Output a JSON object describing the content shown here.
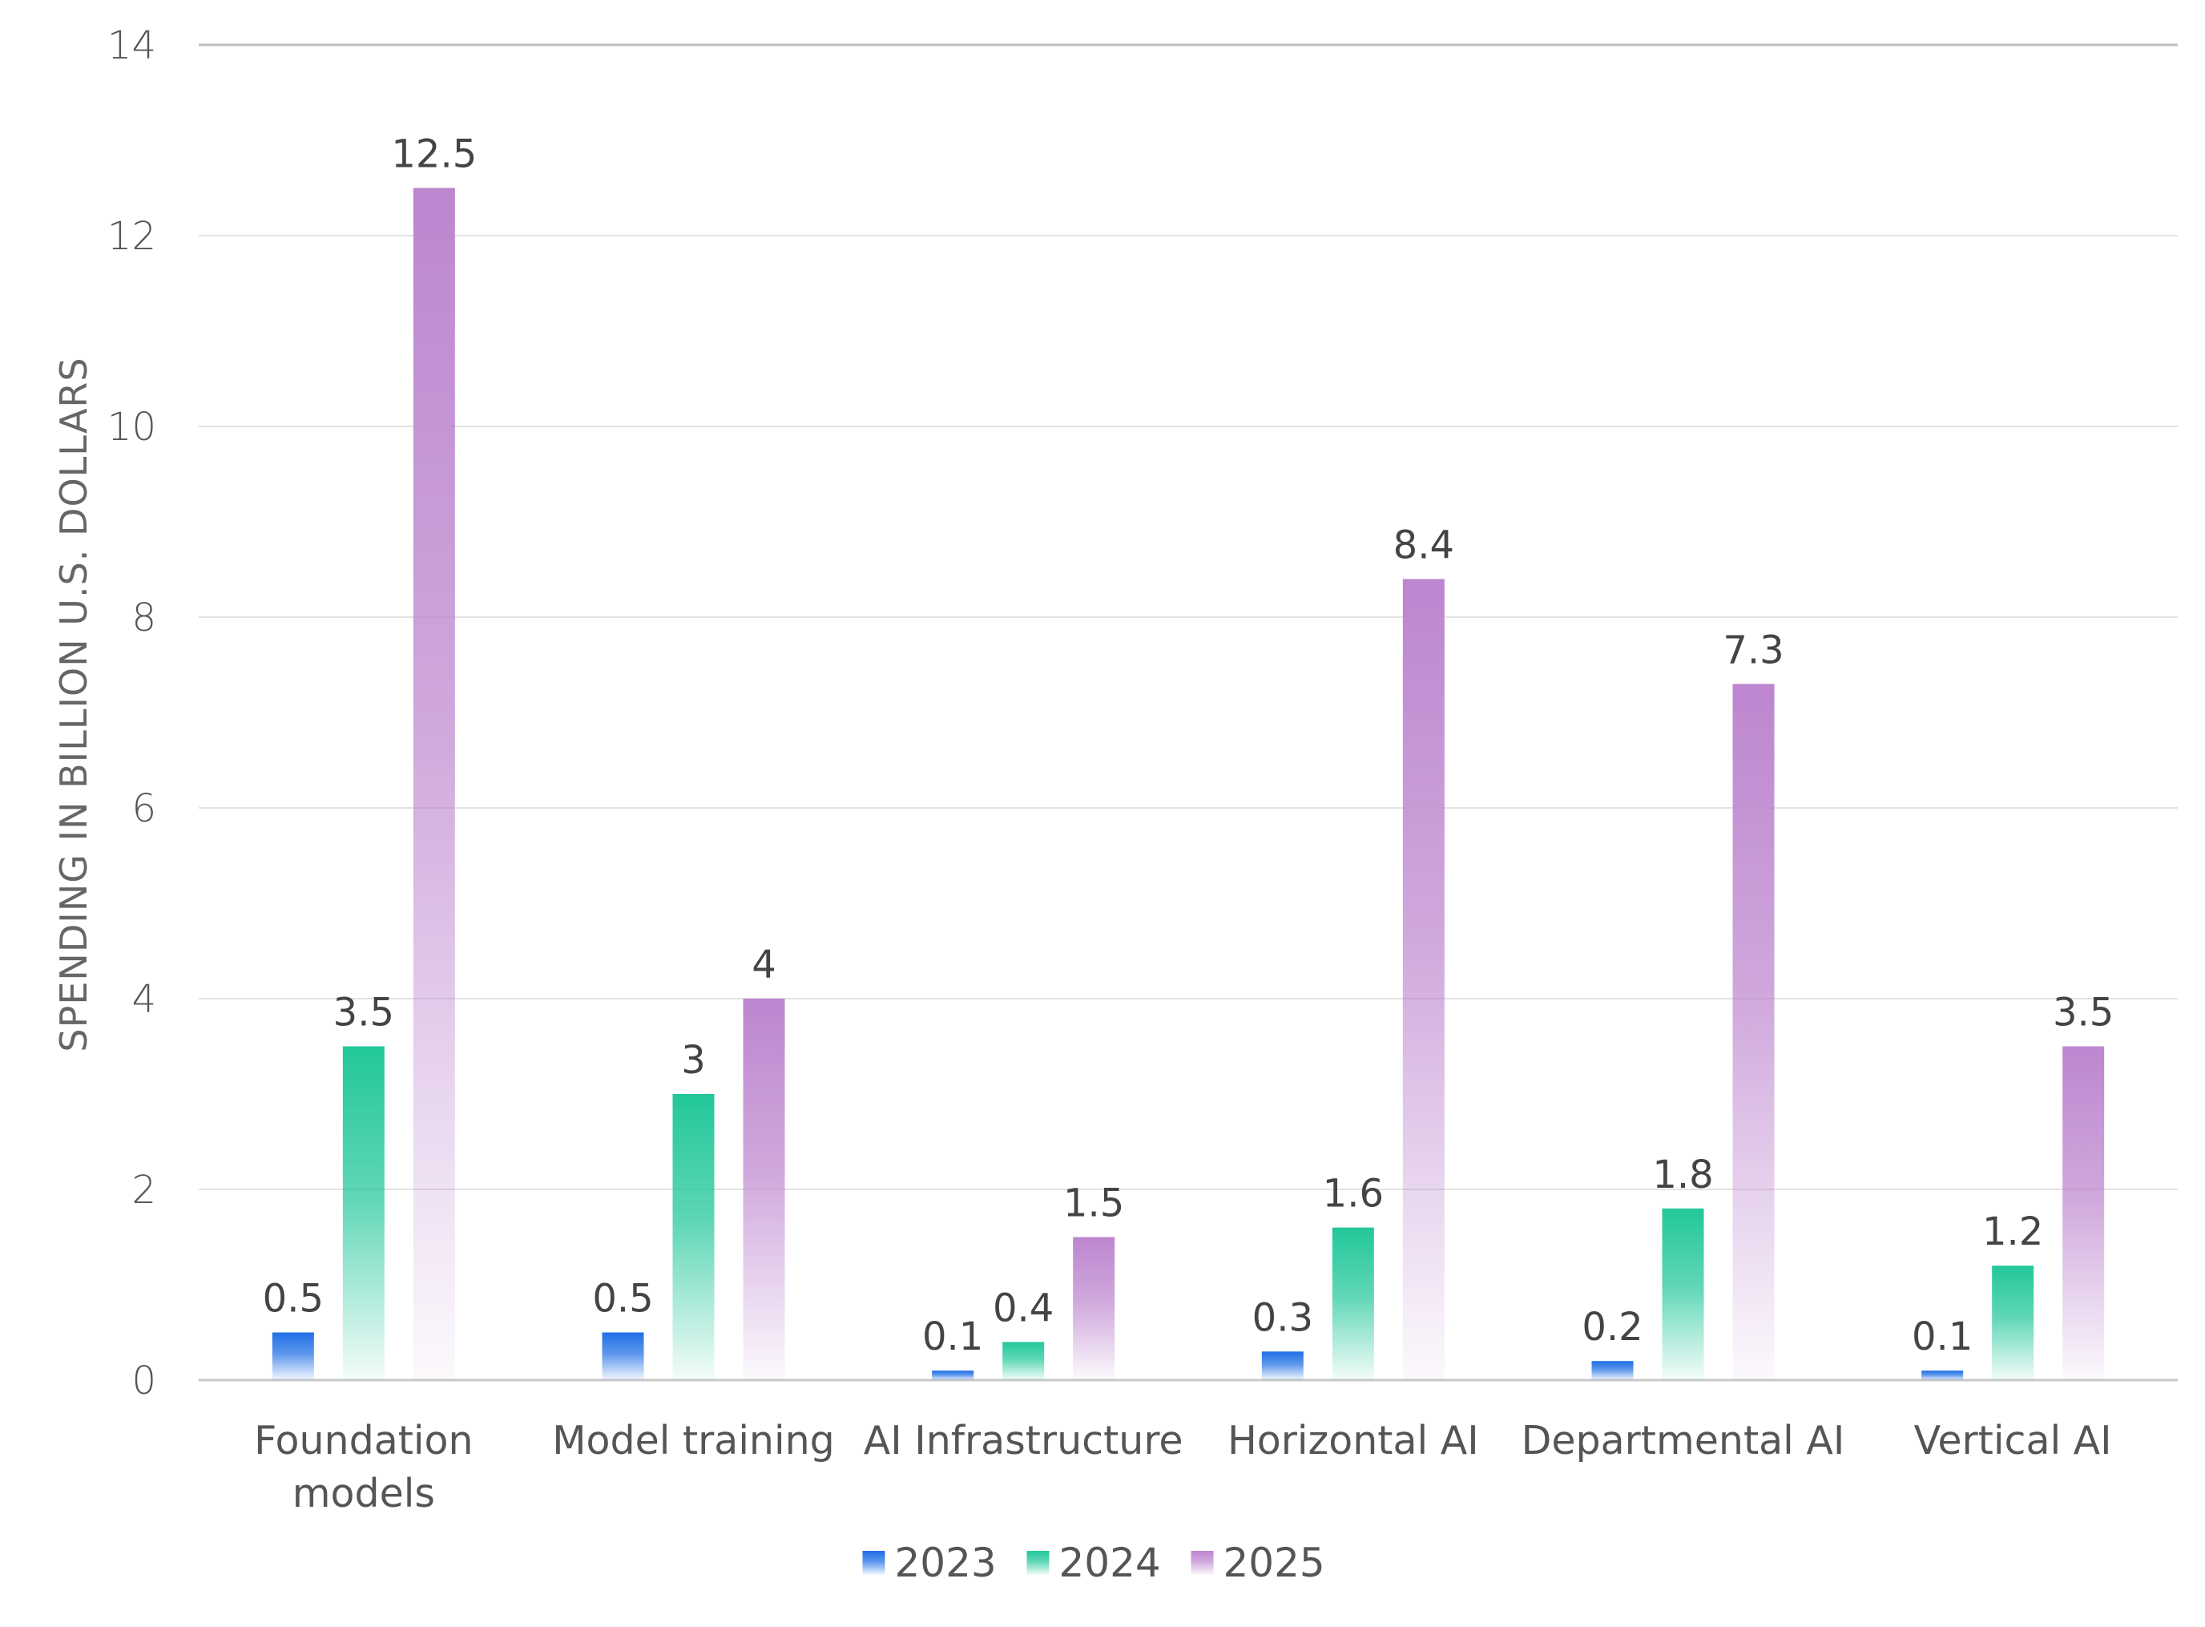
{
  "chart_data": {
    "type": "bar",
    "title": "",
    "xlabel": "",
    "ylabel": "SPENDING IN BILLION U.S. DOLLARS",
    "ylim": [
      0,
      14
    ],
    "yticks": [
      0,
      2,
      4,
      6,
      8,
      10,
      12,
      14
    ],
    "grid": true,
    "legend_position": "bottom",
    "categories": [
      [
        "Foundation",
        "models"
      ],
      [
        "Model training"
      ],
      [
        "AI Infrastructure"
      ],
      [
        "Horizontal AI"
      ],
      [
        "Departmental AI"
      ],
      [
        "Vertical AI"
      ]
    ],
    "series": [
      {
        "name": "2023",
        "color": "#1f6fe5",
        "values": [
          0.5,
          0.5,
          0.1,
          0.3,
          0.2,
          0.1
        ]
      },
      {
        "name": "2024",
        "color": "#22c79a",
        "values": [
          3.5,
          3,
          0.4,
          1.6,
          1.8,
          1.2
        ]
      },
      {
        "name": "2025",
        "color": "#bd86cf",
        "values": [
          12.5,
          4,
          1.5,
          8.4,
          7.3,
          3.5
        ]
      }
    ]
  }
}
